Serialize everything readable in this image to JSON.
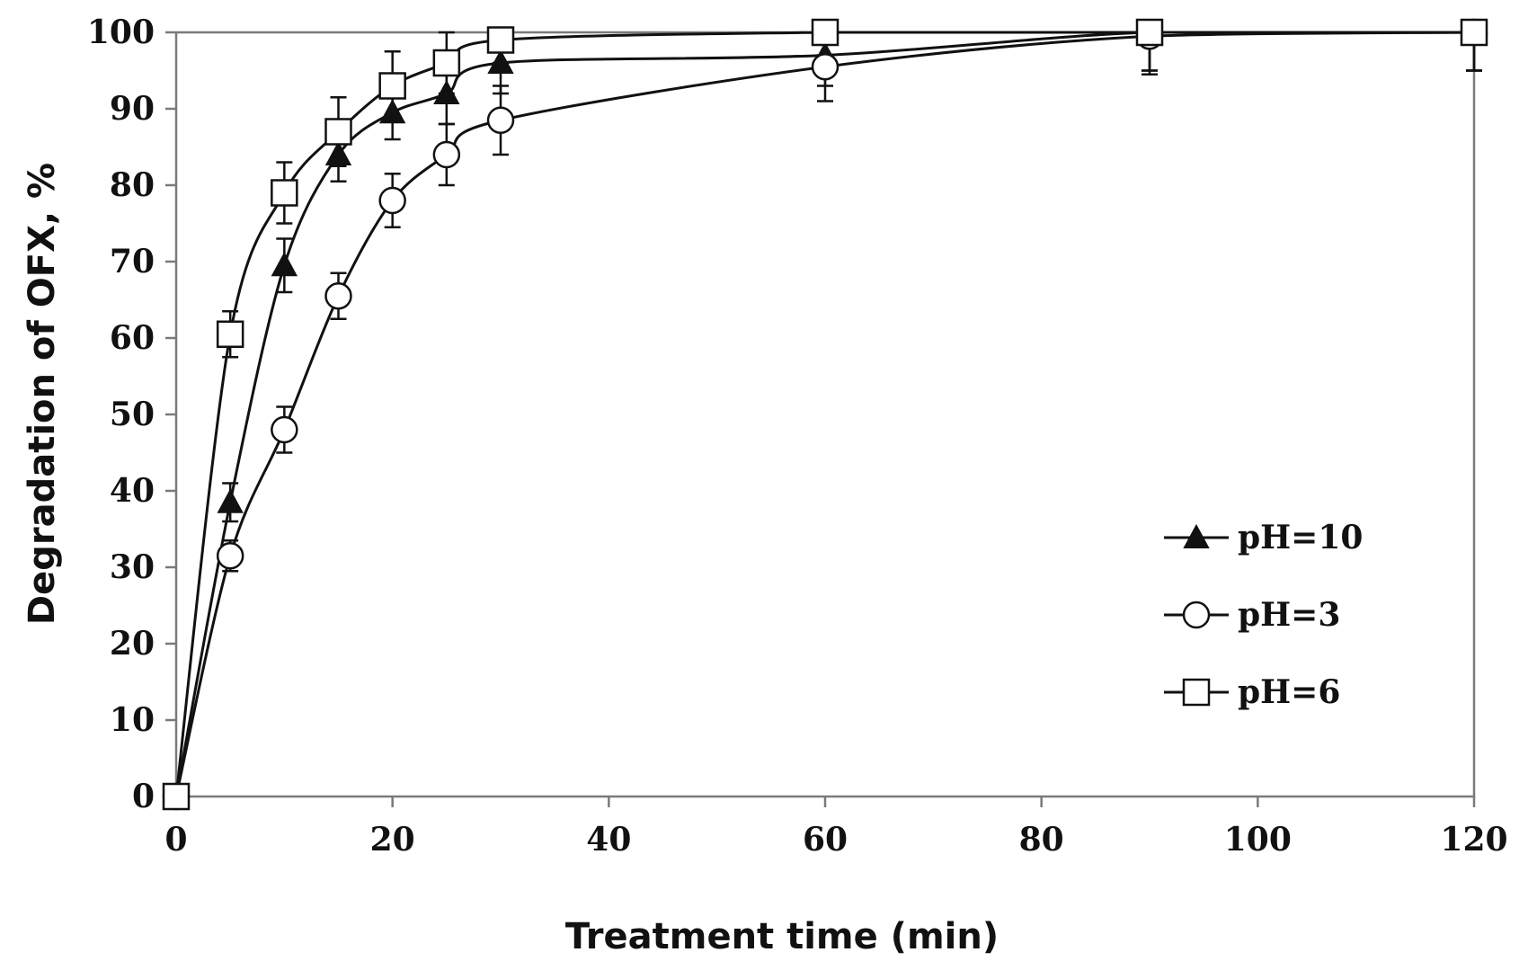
{
  "chart_data": {
    "type": "line",
    "title": "",
    "xlabel": "Treatment time (min)",
    "ylabel": "Degradation of OFX, %",
    "xlim": [
      0,
      120
    ],
    "ylim": [
      0,
      100
    ],
    "xticks": [
      0,
      20,
      40,
      60,
      80,
      100,
      120
    ],
    "yticks": [
      0,
      10,
      20,
      30,
      40,
      50,
      60,
      70,
      80,
      90,
      100
    ],
    "grid": false,
    "legend_position": "bottom-right",
    "x": [
      0,
      5,
      10,
      15,
      20,
      25,
      30,
      60,
      90,
      120
    ],
    "series": [
      {
        "name": "pH=10",
        "marker": "filled-triangle",
        "values": [
          0,
          38.5,
          69.5,
          84,
          89.5,
          92,
          96,
          97,
          100,
          100
        ],
        "errors": [
          0,
          2.5,
          3.5,
          3.5,
          3.5,
          4,
          4,
          4,
          5,
          5
        ]
      },
      {
        "name": "pH=3",
        "marker": "open-circle",
        "values": [
          0,
          31.5,
          48,
          65.5,
          78,
          84,
          88.5,
          95.5,
          99.5,
          100
        ],
        "errors": [
          0,
          2,
          3,
          3,
          3.5,
          4,
          4.5,
          4.5,
          5,
          5
        ]
      },
      {
        "name": "pH=6",
        "marker": "open-square",
        "values": [
          0,
          60.5,
          79,
          87,
          93,
          96,
          99,
          100,
          100,
          100
        ],
        "errors": [
          0,
          3,
          4,
          4.5,
          4.5,
          4,
          3,
          3,
          5,
          5
        ]
      }
    ]
  },
  "colors": {
    "line": "#111111",
    "axis": "#7a7a7a",
    "background": "#ffffff"
  }
}
